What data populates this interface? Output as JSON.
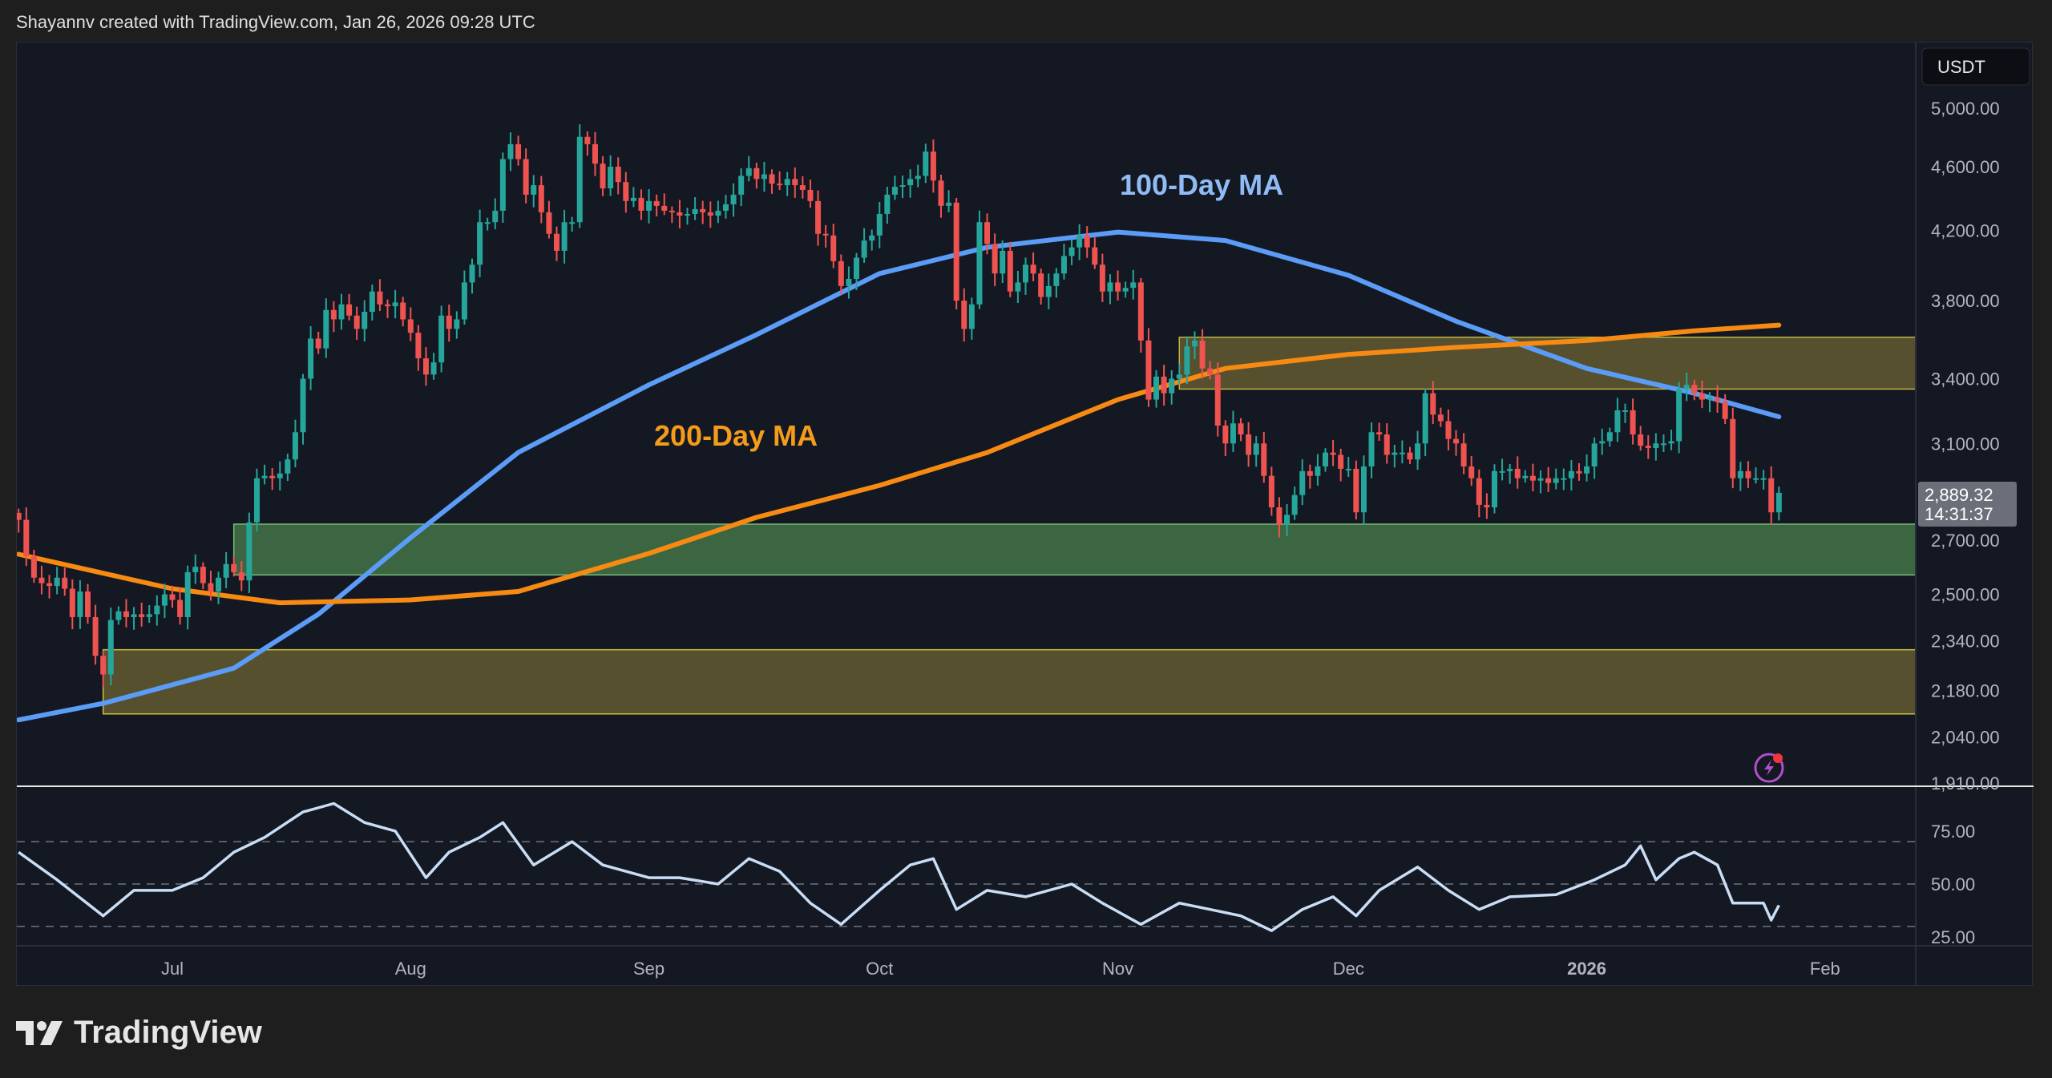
{
  "header": {
    "attribution": "Shayannv created with TradingView.com, Jan 26, 2026 09:28 UTC"
  },
  "footer": {
    "logo_text": "TradingView"
  },
  "colors": {
    "up": "#26a69a",
    "down": "#ef5350",
    "ma100": "#5b9cf6",
    "ma200": "#f68a12",
    "rsi": "#c9ddf5",
    "green_zone": "#3e6b43",
    "yellow_zone": "#5a5430"
  },
  "icons": {
    "alert": "lightning-bolt-icon"
  },
  "chart_data": {
    "type": "candlestick",
    "currency_label": "USDT",
    "price_scale": "log",
    "start_date": "2025-06-11",
    "closes": [
      2780,
      2640,
      2560,
      2540,
      2530,
      2560,
      2520,
      2420,
      2510,
      2420,
      2290,
      2230,
      2410,
      2440,
      2420,
      2430,
      2420,
      2430,
      2460,
      2500,
      2480,
      2420,
      2580,
      2600,
      2540,
      2510,
      2560,
      2610,
      2580,
      2550,
      2770,
      2950,
      2960,
      2950,
      2970,
      3030,
      3150,
      3400,
      3600,
      3550,
      3750,
      3700,
      3780,
      3720,
      3650,
      3740,
      3850,
      3780,
      3770,
      3790,
      3700,
      3630,
      3500,
      3420,
      3480,
      3720,
      3650,
      3700,
      3900,
      4000,
      4250,
      4250,
      4320,
      4650,
      4750,
      4650,
      4420,
      4480,
      4310,
      4180,
      4080,
      4250,
      4250,
      4800,
      4750,
      4620,
      4460,
      4600,
      4500,
      4380,
      4400,
      4320,
      4380,
      4350,
      4320,
      4310,
      4290,
      4300,
      4330,
      4310,
      4290,
      4320,
      4360,
      4420,
      4540,
      4590,
      4520,
      4550,
      4490,
      4480,
      4520,
      4480,
      4450,
      4380,
      4180,
      4170,
      4020,
      3880,
      3920,
      4040,
      4140,
      4170,
      4300,
      4420,
      4470,
      4480,
      4520,
      4540,
      4700,
      4510,
      4350,
      4370,
      3800,
      3650,
      3780,
      4250,
      4120,
      3950,
      4080,
      3850,
      3900,
      4000,
      3950,
      3820,
      3880,
      3950,
      4050,
      4100,
      4170,
      4100,
      4000,
      3850,
      3900,
      3850,
      3870,
      3900,
      3590,
      3300,
      3410,
      3330,
      3400,
      3420,
      3560,
      3590,
      3450,
      3420,
      3180,
      3100,
      3190,
      3140,
      3050,
      3100,
      2960,
      2830,
      2760,
      2800,
      2880,
      2980,
      2960,
      3000,
      3060,
      3050,
      2990,
      2990,
      2810,
      3000,
      3150,
      3140,
      3050,
      3060,
      3060,
      3030,
      3100,
      3330,
      3230,
      3200,
      3120,
      3100,
      3000,
      2950,
      2840,
      2830,
      2980,
      2980,
      2990,
      2950,
      2960,
      2940,
      2950,
      2930,
      2950,
      2950,
      2980,
      2970,
      3000,
      3100,
      3110,
      3150,
      3250,
      3250,
      3140,
      3090,
      3080,
      3100,
      3100,
      3110,
      3350,
      3370,
      3330,
      3300,
      3310,
      3290,
      3210,
      2950,
      2980,
      2950,
      2950,
      2950,
      2810,
      2889.32
    ],
    "last_price": "2,889.32",
    "countdown": "14:31:37",
    "moving_averages": [
      {
        "name": "100-Day MA",
        "points": [
          [
            "2025-06-11",
            2090
          ],
          [
            "2025-06-22",
            2140
          ],
          [
            "2025-07-09",
            2250
          ],
          [
            "2025-07-20",
            2430
          ],
          [
            "2025-08-01",
            2710
          ],
          [
            "2025-08-15",
            3060
          ],
          [
            "2025-09-01",
            3370
          ],
          [
            "2025-09-15",
            3620
          ],
          [
            "2025-10-01",
            3950
          ],
          [
            "2025-10-15",
            4100
          ],
          [
            "2025-11-01",
            4190
          ],
          [
            "2025-11-15",
            4140
          ],
          [
            "2025-12-01",
            3940
          ],
          [
            "2025-12-15",
            3690
          ],
          [
            "2026-01-01",
            3450
          ],
          [
            "2026-01-15",
            3330
          ],
          [
            "2026-01-26",
            3220
          ]
        ]
      },
      {
        "name": "200-Day MA",
        "points": [
          [
            "2025-06-11",
            2647
          ],
          [
            "2025-07-01",
            2520
          ],
          [
            "2025-07-15",
            2470
          ],
          [
            "2025-08-01",
            2480
          ],
          [
            "2025-08-15",
            2510
          ],
          [
            "2025-09-01",
            2650
          ],
          [
            "2025-09-15",
            2790
          ],
          [
            "2025-10-01",
            2920
          ],
          [
            "2025-10-15",
            3060
          ],
          [
            "2025-11-01",
            3300
          ],
          [
            "2025-11-15",
            3450
          ],
          [
            "2025-12-01",
            3520
          ],
          [
            "2025-12-15",
            3555
          ],
          [
            "2026-01-01",
            3590
          ],
          [
            "2026-01-15",
            3640
          ],
          [
            "2026-01-26",
            3670
          ]
        ]
      }
    ],
    "zones": [
      {
        "kind": "supply",
        "from": "2025-11-09",
        "low": 3350,
        "high": 3607
      },
      {
        "kind": "support",
        "from": "2025-07-09",
        "low": 2570,
        "high": 2763
      },
      {
        "kind": "demand",
        "from": "2025-06-22",
        "low": 2108,
        "high": 2310
      }
    ],
    "price_ticks": [
      "5,000.00",
      "4,600.00",
      "4,200.00",
      "3,800.00",
      "3,400.00",
      "3,100.00",
      "2,700.00",
      "2,500.00",
      "2,340.00",
      "2,180.00",
      "2,040.00",
      "1,910.00"
    ],
    "price_tick_values": [
      5000,
      4600,
      4200,
      3800,
      3400,
      3100,
      2700,
      2500,
      2340,
      2180,
      2040,
      1910
    ],
    "time_ticks": [
      [
        "Jul",
        "2025-07-01"
      ],
      [
        "Aug",
        "2025-08-01"
      ],
      [
        "Sep",
        "2025-09-01"
      ],
      [
        "Oct",
        "2025-10-01"
      ],
      [
        "Nov",
        "2025-11-01"
      ],
      [
        "Dec",
        "2025-12-01"
      ],
      [
        "2026",
        "2026-01-01"
      ],
      [
        "Feb",
        "2026-02-01"
      ]
    ],
    "rsi": {
      "ticks": [
        "75.00",
        "50.00",
        "25.00"
      ],
      "tick_values": [
        75,
        50,
        25
      ],
      "levels": [
        70,
        50,
        30
      ],
      "points": [
        [
          "2025-06-11",
          65
        ],
        [
          "2025-06-16",
          52
        ],
        [
          "2025-06-22",
          35
        ],
        [
          "2025-06-26",
          47
        ],
        [
          "2025-07-01",
          47
        ],
        [
          "2025-07-05",
          53
        ],
        [
          "2025-07-09",
          65
        ],
        [
          "2025-07-13",
          72
        ],
        [
          "2025-07-18",
          84
        ],
        [
          "2025-07-22",
          88
        ],
        [
          "2025-07-26",
          79
        ],
        [
          "2025-07-30",
          75
        ],
        [
          "2025-08-03",
          53
        ],
        [
          "2025-08-06",
          65
        ],
        [
          "2025-08-10",
          72
        ],
        [
          "2025-08-13",
          79
        ],
        [
          "2025-08-17",
          59
        ],
        [
          "2025-08-22",
          70
        ],
        [
          "2025-08-26",
          59
        ],
        [
          "2025-09-01",
          53
        ],
        [
          "2025-09-05",
          53
        ],
        [
          "2025-09-10",
          50
        ],
        [
          "2025-09-14",
          62
        ],
        [
          "2025-09-18",
          56
        ],
        [
          "2025-09-22",
          41
        ],
        [
          "2025-09-26",
          31
        ],
        [
          "2025-10-01",
          47
        ],
        [
          "2025-10-05",
          59
        ],
        [
          "2025-10-08",
          62
        ],
        [
          "2025-10-11",
          38
        ],
        [
          "2025-10-15",
          47
        ],
        [
          "2025-10-20",
          44
        ],
        [
          "2025-10-26",
          50
        ],
        [
          "2025-10-30",
          41
        ],
        [
          "2025-11-04",
          31
        ],
        [
          "2025-11-09",
          41
        ],
        [
          "2025-11-13",
          38
        ],
        [
          "2025-11-17",
          35
        ],
        [
          "2025-11-21",
          28
        ],
        [
          "2025-11-25",
          38
        ],
        [
          "2025-11-29",
          44
        ],
        [
          "2025-12-02",
          35
        ],
        [
          "2025-12-05",
          47
        ],
        [
          "2025-12-10",
          58
        ],
        [
          "2025-12-14",
          47
        ],
        [
          "2025-12-18",
          38
        ],
        [
          "2025-12-22",
          44
        ],
        [
          "2025-12-28",
          45
        ],
        [
          "2026-01-02",
          52
        ],
        [
          "2026-01-06",
          59
        ],
        [
          "2026-01-08",
          68
        ],
        [
          "2026-01-10",
          52
        ],
        [
          "2026-01-13",
          62
        ],
        [
          "2026-01-15",
          65
        ],
        [
          "2026-01-18",
          59
        ],
        [
          "2026-01-20",
          41
        ],
        [
          "2026-01-24",
          41
        ],
        [
          "2026-01-25",
          33
        ],
        [
          "2026-01-26",
          40
        ]
      ]
    }
  }
}
